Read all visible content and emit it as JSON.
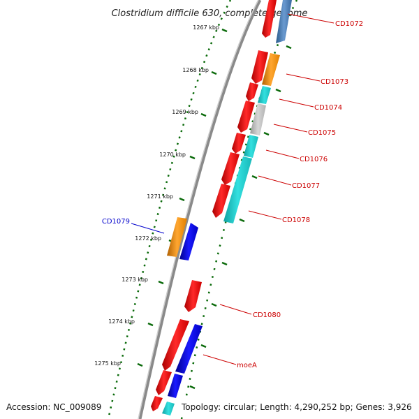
{
  "title": "Clostridium difficile 630, complete genome",
  "footer": {
    "accession": "Accession: NC_009089",
    "summary": "Topology: circular; Length: 4,290,252 bp; Genes: 3,926"
  },
  "colors": {
    "red": "#ee1111",
    "orange": "#ff9a1a",
    "cyan": "#22cccc",
    "blue": "#0a0aee",
    "gray": "#c0c0c0",
    "steelblue": "#4a80b8",
    "tick": "#0a6a0a",
    "label_red": "#cc0000",
    "label_blue": "#0000cc"
  },
  "ticks": [
    "1267 kbp",
    "1268 kbp",
    "1269 kbp",
    "1270 kbp",
    "1271 kbp",
    "1272 kbp",
    "1273 kbp",
    "1274 kbp",
    "1275 kbp"
  ],
  "gene_labels": [
    "CD1072",
    "CD1073",
    "CD1074",
    "CD1075",
    "CD1076",
    "CD1077",
    "CD1078",
    "CD1079",
    "CD1080",
    "moeA"
  ]
}
